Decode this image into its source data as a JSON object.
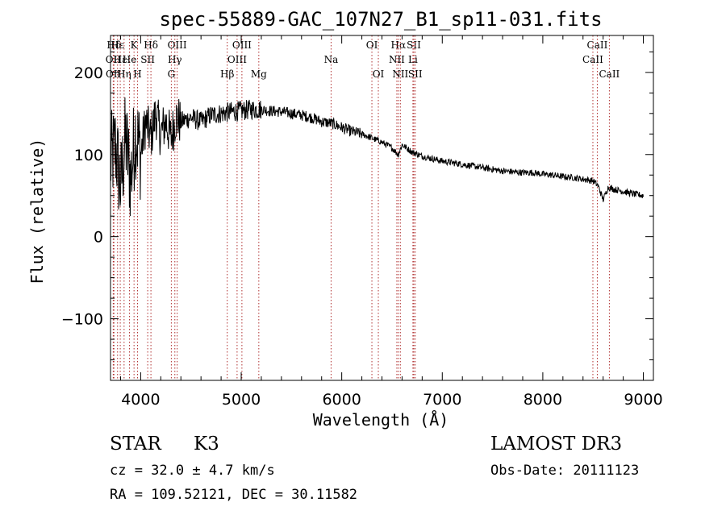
{
  "chart_data": {
    "type": "line",
    "title": "spec-55889-GAC_107N27_B1_sp11-031.fits",
    "xlabel": "Wavelength (Å)",
    "ylabel": "Flux (relative)",
    "xlim": [
      3700,
      9100
    ],
    "ylim": [
      -175,
      245
    ],
    "xticks": [
      4000,
      5000,
      6000,
      7000,
      8000,
      9000
    ],
    "xtick_labels": [
      "4000",
      "5000",
      "6000",
      "7000",
      "8000",
      "9000"
    ],
    "yticks": [
      -100,
      0,
      100,
      200
    ],
    "ytick_labels": [
      "−100",
      "0",
      "100",
      "200"
    ],
    "series": [
      {
        "name": "flux",
        "x": [
          3700,
          3750,
          3800,
          3850,
          3900,
          3950,
          4000,
          4050,
          4100,
          4150,
          4200,
          4250,
          4300,
          4350,
          4400,
          4500,
          4600,
          4700,
          4800,
          4900,
          5000,
          5100,
          5200,
          5300,
          5400,
          5500,
          5600,
          5700,
          5800,
          5900,
          6000,
          6100,
          6200,
          6300,
          6400,
          6500,
          6563,
          6600,
          6700,
          6800,
          6900,
          7000,
          7100,
          7200,
          7300,
          7400,
          7500,
          7600,
          7700,
          7800,
          7900,
          8000,
          8100,
          8200,
          8300,
          8400,
          8500,
          8550,
          8600,
          8650,
          8700,
          8800,
          8900,
          9000
        ],
        "y": [
          90,
          110,
          60,
          120,
          70,
          130,
          100,
          140,
          120,
          150,
          125,
          140,
          120,
          145,
          140,
          145,
          140,
          148,
          150,
          152,
          153,
          155,
          155,
          153,
          152,
          150,
          148,
          145,
          140,
          138,
          133,
          128,
          125,
          120,
          115,
          108,
          100,
          112,
          103,
          98,
          95,
          92,
          90,
          88,
          86,
          84,
          82,
          80,
          79,
          78,
          78,
          76,
          75,
          73,
          72,
          70,
          68,
          62,
          45,
          60,
          58,
          55,
          52,
          50
        ]
      }
    ],
    "line_markers": [
      {
        "name": "Hδ",
        "wave": 3734,
        "row": 0
      },
      {
        "name": "OII",
        "wave": 3727,
        "row": 1
      },
      {
        "name": "OII",
        "wave": 3729,
        "row": 2
      },
      {
        "name": "Hε",
        "wave": 3770,
        "row": 0
      },
      {
        "name": "Hε",
        "wave": 3797,
        "row": 1
      },
      {
        "name": "Hη",
        "wave": 3835,
        "row": 2
      },
      {
        "name": "K",
        "wave": 3934,
        "row": 0
      },
      {
        "name": "H",
        "wave": 3969,
        "row": 2
      },
      {
        "name": "He",
        "wave": 3889,
        "row": 1
      },
      {
        "name": "Hδ",
        "wave": 4102,
        "row": 0
      },
      {
        "name": "SII",
        "wave": 4070,
        "row": 1
      },
      {
        "name": "OIII",
        "wave": 4363,
        "row": 0
      },
      {
        "name": "Hγ",
        "wave": 4340,
        "row": 1
      },
      {
        "name": "G",
        "wave": 4305,
        "row": 2
      },
      {
        "name": "OIII",
        "wave": 5007,
        "row": 0
      },
      {
        "name": "OIII",
        "wave": 4959,
        "row": 1
      },
      {
        "name": "Hβ",
        "wave": 4861,
        "row": 2
      },
      {
        "name": "Mg",
        "wave": 5175,
        "row": 2
      },
      {
        "name": "Na",
        "wave": 5894,
        "row": 1
      },
      {
        "name": "OI",
        "wave": 6300,
        "row": 0
      },
      {
        "name": "OI",
        "wave": 6364,
        "row": 2
      },
      {
        "name": "Hα",
        "wave": 6563,
        "row": 0
      },
      {
        "name": "NII",
        "wave": 6548,
        "row": 1
      },
      {
        "name": "NII",
        "wave": 6583,
        "row": 2
      },
      {
        "name": "SII",
        "wave": 6717,
        "row": 0
      },
      {
        "name": "Li",
        "wave": 6708,
        "row": 1
      },
      {
        "name": "SII",
        "wave": 6731,
        "row": 2
      },
      {
        "name": "CaII",
        "wave": 8542,
        "row": 0
      },
      {
        "name": "CaII",
        "wave": 8498,
        "row": 1
      },
      {
        "name": "CaII",
        "wave": 8662,
        "row": 2
      }
    ]
  },
  "info": {
    "object_class": "STAR",
    "subclass": "K3",
    "cz": "cz = 32.0 ± 4.7 km/s",
    "coords": "RA = 109.52121, DEC =  30.11582",
    "survey": "LAMOST DR3",
    "obs_date": "Obs-Date: 20111123"
  }
}
